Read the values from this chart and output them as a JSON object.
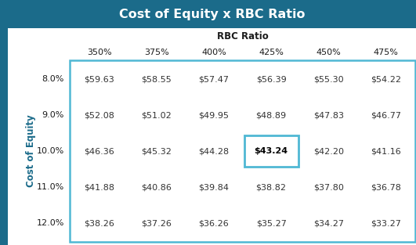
{
  "title": "Cost of Equity x RBC Ratio",
  "col_header_label": "RBC Ratio",
  "row_header_label": "Cost of Equity",
  "col_headers": [
    "350%",
    "375%",
    "400%",
    "425%",
    "450%",
    "475%"
  ],
  "row_headers": [
    "8.0%",
    "9.0%",
    "10.0%",
    "11.0%",
    "12.0%"
  ],
  "data": [
    [
      "$59.63",
      "$58.55",
      "$57.47",
      "$56.39",
      "$55.30",
      "$54.22"
    ],
    [
      "$52.08",
      "$51.02",
      "$49.95",
      "$48.89",
      "$47.83",
      "$46.77"
    ],
    [
      "$46.36",
      "$45.32",
      "$44.28",
      "$43.24",
      "$42.20",
      "$41.16"
    ],
    [
      "$41.88",
      "$40.86",
      "$39.84",
      "$38.82",
      "$37.80",
      "$36.78"
    ],
    [
      "$38.26",
      "$37.26",
      "$36.26",
      "$35.27",
      "$34.27",
      "$33.27"
    ]
  ],
  "highlighted_cell": [
    2,
    3
  ],
  "title_bg": "#1b6b8a",
  "title_color": "#ffffff",
  "col_header_color": "#1b1b1b",
  "col_header_label_color": "#1b1b1b",
  "table_border_color": "#4fb8d4",
  "highlight_border_color": "#4fb8d4",
  "cell_text_color": "#333333",
  "highlight_text_color": "#000000",
  "left_bar_color": "#1b6b8a",
  "row_label_color": "#1b6b8a",
  "background_color": "#ffffff"
}
